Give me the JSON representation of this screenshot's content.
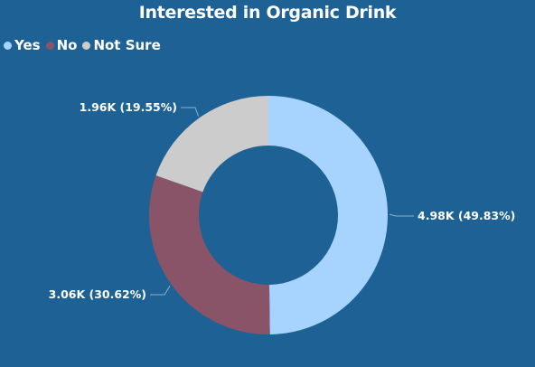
{
  "chart_data": {
    "type": "pie",
    "donut": true,
    "title": "Interested in Organic Drink",
    "legend_position": "top-left",
    "categories": [
      "Yes",
      "No",
      "Not Sure"
    ],
    "values": [
      4980,
      3060,
      1960
    ],
    "percentages": [
      49.83,
      30.62,
      19.55
    ],
    "data_labels": [
      "4.98K (49.83%)",
      "3.06K (30.62%)",
      "1.96K (19.55%)"
    ],
    "colors": [
      "#a6d4ff",
      "#8a5468",
      "#cccccc"
    ],
    "background": "#1e6195"
  }
}
